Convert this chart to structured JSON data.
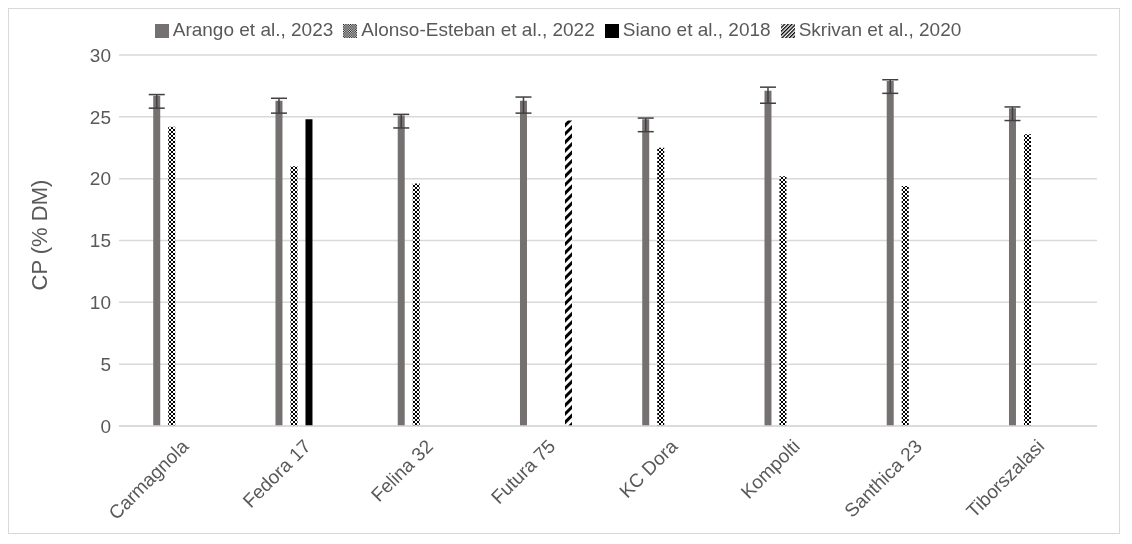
{
  "chart_data": {
    "type": "bar",
    "ylabel": "CP (% DM)",
    "categories": [
      "Carmagnola",
      "Fedora 17",
      "Felina 32",
      "Futura 75",
      "KC Dora",
      "Kompolti",
      "Santhica 23",
      "Tiborszalasi"
    ],
    "series": [
      {
        "name": "Arango et al., 2023",
        "color": "#767171",
        "values": [
          26.7,
          26.3,
          25.1,
          26.3,
          24.8,
          27.1,
          27.9,
          25.7
        ],
        "errors": [
          [
            25.7,
            26.8
          ],
          [
            25.3,
            26.5
          ],
          [
            24.1,
            25.2
          ],
          [
            25.3,
            26.6
          ],
          [
            23.8,
            24.9
          ],
          [
            26.1,
            27.4
          ],
          [
            26.9,
            28.0
          ],
          [
            24.7,
            25.8
          ]
        ]
      },
      {
        "name": "Alonso-Esteban et al., 2022",
        "color": "#000000",
        "values": [
          24.2,
          21.0,
          19.6,
          null,
          22.5,
          20.2,
          19.4,
          23.6
        ]
      },
      {
        "name": "Siano et al., 2018",
        "color": "#000000",
        "values": [
          null,
          24.8,
          null,
          null,
          null,
          null,
          null,
          null
        ]
      },
      {
        "name": "Skrivan et al., 2020",
        "color": "#000000",
        "values": [
          null,
          null,
          null,
          24.7,
          null,
          null,
          null,
          null
        ]
      }
    ],
    "ylim": [
      0,
      30
    ],
    "yticks": [
      0,
      5,
      10,
      15,
      20,
      25,
      30
    ],
    "grid": "y",
    "legend": "top"
  }
}
